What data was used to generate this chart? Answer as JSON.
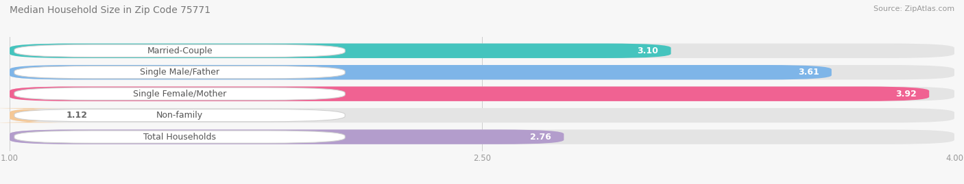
{
  "title": "Median Household Size in Zip Code 75771",
  "source": "Source: ZipAtlas.com",
  "categories": [
    "Married-Couple",
    "Single Male/Father",
    "Single Female/Mother",
    "Non-family",
    "Total Households"
  ],
  "values": [
    3.1,
    3.61,
    3.92,
    1.12,
    2.76
  ],
  "bar_colors": [
    "#45C4BE",
    "#7EB5E8",
    "#F06292",
    "#F5C896",
    "#B39DCC"
  ],
  "value_labels": [
    "3.10",
    "3.61",
    "3.92",
    "1.12",
    "2.76"
  ],
  "xmin": 1.0,
  "xmax": 4.0,
  "xticks": [
    1.0,
    2.5,
    4.0
  ],
  "xtick_labels": [
    "1.00",
    "2.50",
    "4.00"
  ],
  "background_color": "#f7f7f7",
  "bar_bg_color": "#e4e4e4",
  "title_fontsize": 10,
  "source_fontsize": 8,
  "label_fontsize": 9,
  "value_fontsize": 9
}
